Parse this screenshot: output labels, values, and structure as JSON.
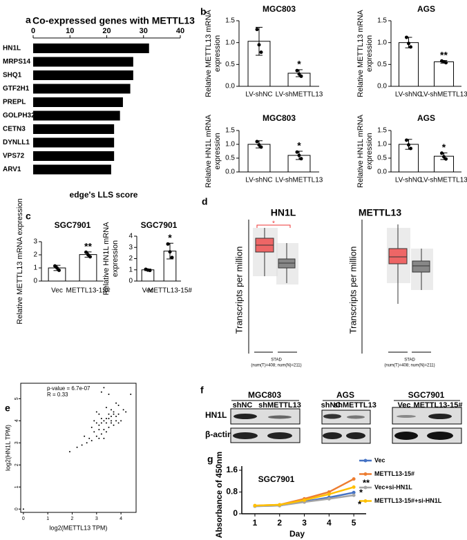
{
  "panel_labels": [
    "a",
    "b",
    "c",
    "d",
    "e",
    "f",
    "g"
  ],
  "chart_data": [
    {
      "type": "hbar",
      "title": "Co-expressed genes with METTL13",
      "xlabel": "edge's LLS score",
      "categories": [
        "HN1L",
        "MRPS14",
        "SHQ1",
        "GTF2H1",
        "PREPL",
        "GOLPH32",
        "CETN3",
        "DYNLL1",
        "VPS72",
        "ARV1"
      ],
      "values": [
        31.5,
        27.2,
        27.2,
        26.4,
        24.4,
        23.6,
        22,
        22,
        22,
        21.2
      ],
      "color": "#000000",
      "xlim": [
        0,
        40
      ],
      "xticks": [
        0,
        10,
        20,
        30,
        40
      ]
    },
    {
      "type": "bar",
      "title": "MGC803",
      "ylabel": [
        "Relative METTL13 mRNA",
        "expression"
      ],
      "categories": [
        "LV-shNC",
        "LV-shMETTL13"
      ],
      "values": [
        1.03,
        0.3
      ],
      "errors": [
        0.32,
        0.08
      ],
      "points": [
        [
          1.3,
          0.95,
          0.78
        ],
        [
          0.36,
          0.28,
          0.23
        ]
      ],
      "annotation": "*",
      "ylim": [
        0,
        1.5
      ],
      "yticks": [
        {
          "value": 0,
          "label": "0.0"
        },
        0.5,
        {
          "value": 1,
          "label": "1.0"
        },
        1.5
      ]
    },
    {
      "type": "bar",
      "title": "AGS",
      "ylabel": [
        "Relative METTL13 mRNA",
        "expression"
      ],
      "categories": [
        "LV-shNC",
        "LV-shMETTL13"
      ],
      "values": [
        1.0,
        0.56
      ],
      "errors": [
        0.12,
        0.03
      ],
      "points": [
        [
          1.12,
          0.98,
          0.9
        ],
        [
          0.58,
          0.56,
          0.54
        ]
      ],
      "annotation": "**",
      "ylim": [
        0,
        1.5
      ],
      "yticks": [
        {
          "value": 0,
          "label": "0.0"
        },
        0.5,
        {
          "value": 1,
          "label": "1.0"
        },
        1.5
      ]
    },
    {
      "type": "bar",
      "title": "MGC803",
      "ylabel": [
        "Relative HN1L mRNA",
        "expression"
      ],
      "categories": [
        "LV-shNC",
        "LV-shMETTL13"
      ],
      "values": [
        1.0,
        0.6
      ],
      "errors": [
        0.13,
        0.15
      ],
      "points": [
        [
          1.1,
          0.98,
          0.9
        ],
        [
          0.72,
          0.6,
          0.48
        ]
      ],
      "annotation": "*",
      "ylim": [
        0,
        1.5
      ],
      "yticks": [
        {
          "value": 0,
          "label": "0.0"
        },
        0.5,
        {
          "value": 1,
          "label": "1.0"
        },
        1.5
      ]
    },
    {
      "type": "bar",
      "title": "AGS",
      "ylabel": [
        "Relative HN1L mRNA",
        "expression"
      ],
      "categories": [
        "LV-shNC",
        "LV-shMETTL13"
      ],
      "values": [
        1.0,
        0.57
      ],
      "errors": [
        0.18,
        0.12
      ],
      "points": [
        [
          1.15,
          0.98,
          0.85
        ],
        [
          0.68,
          0.55,
          0.47
        ]
      ],
      "annotation": "*",
      "ylim": [
        0,
        1.5
      ],
      "yticks": [
        {
          "value": 0,
          "label": "0.0"
        },
        0.5,
        {
          "value": 1,
          "label": "1.0"
        },
        1.5
      ]
    },
    {
      "type": "bar",
      "title": "SGC7901",
      "ylabel": [
        "Relative METTL13 mRNA expression"
      ],
      "categories": [
        "Vec",
        "METTL13-15#"
      ],
      "values": [
        1.0,
        2.02
      ],
      "errors": [
        0.2,
        0.2
      ],
      "points": [
        [
          1.15,
          1.0,
          0.82
        ],
        [
          2.2,
          2.0,
          1.85
        ]
      ],
      "annotation": "**",
      "ylim": [
        0,
        3
      ],
      "yticks": [
        0,
        1,
        2,
        3
      ]
    },
    {
      "type": "bar",
      "title": "SGC7901",
      "ylabel": [
        "Relative HN1L mRNA",
        "expression"
      ],
      "categories": [
        "Vec",
        "METTL13-15#"
      ],
      "values": [
        1.0,
        2.67
      ],
      "errors": [
        0.07,
        0.7
      ],
      "points": [
        [
          1.05,
          0.98,
          0.95
        ],
        [
          3.3,
          2.6,
          2.1
        ]
      ],
      "annotation": "*",
      "ylim": [
        0,
        4
      ],
      "yticks": [
        0,
        1,
        2,
        3,
        4
      ]
    },
    {
      "type": "scatter",
      "xlabel": "log2(METTL13 TPM)",
      "ylabel": "log2(HN1L TPM)",
      "annotations": [
        "p-value = 6.7e-07",
        "R = 0.33"
      ],
      "color": "#000000",
      "x": [
        3.1,
        3.3,
        2.9,
        3.5,
        3.7,
        3.2,
        3.0,
        3.4,
        3.6,
        3.8,
        2.7,
        2.8,
        3.9,
        4.0,
        3.3,
        3.5,
        3.1,
        3.6,
        2.6,
        3.2,
        3.4,
        3.7,
        3.0,
        2.9,
        3.8,
        4.1,
        3.5,
        3.3,
        2.5,
        3.6,
        3.2,
        3.9,
        3.4,
        2.4,
        3.1,
        3.7,
        4.2,
        3.0,
        3.5,
        2.8,
        3.3,
        3.6,
        4.4,
        3.9,
        2.2,
        1.9,
        3.2,
        3.4,
        3.8,
        3.1,
        0.0
      ],
      "y": [
        3.8,
        4.0,
        3.5,
        4.1,
        4.3,
        3.4,
        3.9,
        4.6,
        3.9,
        4.2,
        3.2,
        3.7,
        4.7,
        4.0,
        3.6,
        3.7,
        4.3,
        4.5,
        3.0,
        3.9,
        3.5,
        3.8,
        3.3,
        4.0,
        4.8,
        4.5,
        4.3,
        5.5,
        3.3,
        4.0,
        5.3,
        4.3,
        4.1,
        2.9,
        3.6,
        4.4,
        4.4,
        4.4,
        5.2,
        3.1,
        3.2,
        4.2,
        5.2,
        3.9,
        2.8,
        2.6,
        4.1,
        3.9,
        4.0,
        3.2,
        0.0
      ],
      "xlim": [
        -0.11,
        4.62
      ],
      "ylim": [
        -0.15,
        5.7
      ],
      "xticks": [
        0,
        1,
        2,
        3,
        4
      ],
      "yticks": [
        0,
        1,
        2,
        3,
        4,
        5
      ]
    },
    {
      "type": "line",
      "title": "SGC7901",
      "xlabel": "Day",
      "ylabel": "Absorbance of 450nm",
      "x": [
        1,
        2,
        3,
        4,
        5
      ],
      "xlim": [
        0.47,
        5.5
      ],
      "xticks": [
        1,
        2,
        3,
        4,
        5
      ],
      "ylim": [
        0,
        1.6
      ],
      "yticks": [
        0,
        0.8,
        1.6
      ],
      "annotations": [
        "**",
        "*",
        "*"
      ],
      "series": [
        {
          "name": "Vec",
          "color": "#4472c4",
          "values": [
            0.28,
            0.3,
            0.45,
            0.6,
            0.78
          ]
        },
        {
          "name": "METTL13-15#",
          "color": "#ed7d31",
          "values": [
            0.3,
            0.33,
            0.55,
            0.8,
            1.28
          ]
        },
        {
          "name": "Vec+si-HN1L",
          "color": "#a5a5a5",
          "values": [
            0.28,
            0.3,
            0.43,
            0.55,
            0.68
          ]
        },
        {
          "name": "METTL13-15#+si-HN1L",
          "color": "#ffc000",
          "values": [
            0.3,
            0.33,
            0.5,
            0.72,
            0.98
          ]
        }
      ]
    }
  ],
  "panel_d": {
    "plots": [
      {
        "title": "HN1L",
        "ylabel": "Transcripts per million",
        "significance": "*",
        "xlabel": "STAD",
        "note": "(num(T)=408; num(N)=211)"
      },
      {
        "title": "METTL13",
        "ylabel": "Transcripts per million",
        "xlabel": "STAD",
        "note": "(num(T)=408; num(N)=211)"
      }
    ]
  },
  "panel_f": {
    "groups": [
      {
        "name": "MGC803",
        "lanes": [
          "shNC",
          "shMETTL13"
        ]
      },
      {
        "name": "AGS",
        "lanes": [
          "shNC",
          "shMETTL13"
        ]
      },
      {
        "name": "SGC7901",
        "lanes": [
          "Vec",
          "METTL13-15#"
        ]
      }
    ],
    "rows": [
      "HN1L",
      "β-actin"
    ]
  }
}
